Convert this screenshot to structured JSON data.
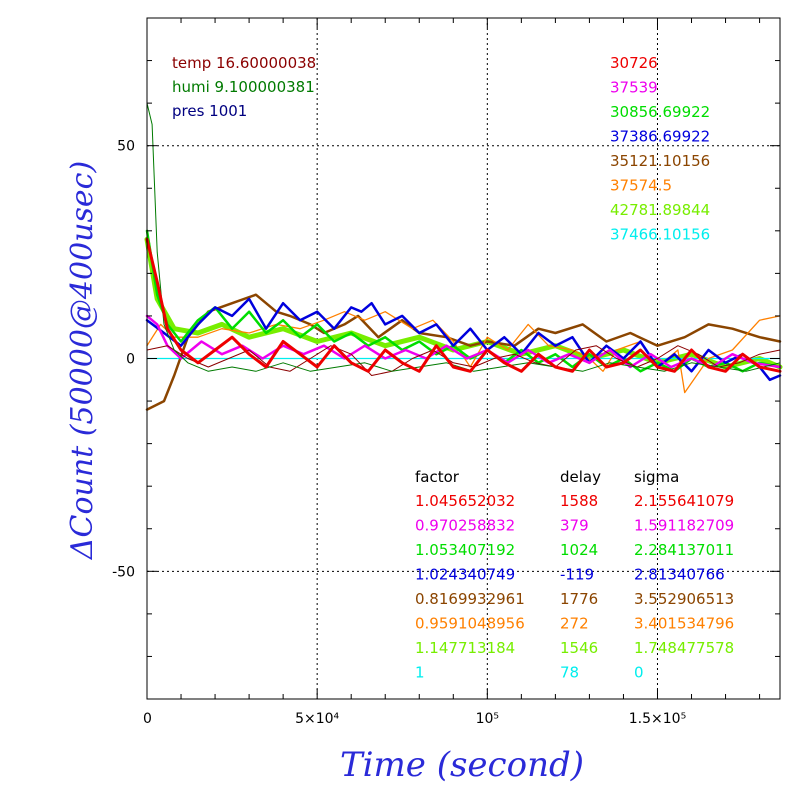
{
  "chart_data": {
    "type": "line",
    "xlabel": "Time (second)",
    "ylabel": "ΔCount (50000@400usec)",
    "xlim": [
      0,
      186000
    ],
    "ylim": [
      -80,
      80
    ],
    "x_ticks": [
      {
        "value": 0,
        "label": "0"
      },
      {
        "value": 50000,
        "label": "5×10⁴"
      },
      {
        "value": 100000,
        "label": "10⁵"
      },
      {
        "value": 150000,
        "label": "1.5×10⁵"
      }
    ],
    "y_ticks": [
      {
        "value": 50,
        "label": "50"
      },
      {
        "value": 0,
        "label": "0"
      },
      {
        "value": -50,
        "label": "-50"
      }
    ],
    "grid": true,
    "env": [
      {
        "text": "temp 16.60000038",
        "color": "#8b0000"
      },
      {
        "text": "humi 9.100000381",
        "color": "#007a00"
      },
      {
        "text": "pres 1001",
        "color": "#000080"
      }
    ],
    "right_labels": [
      {
        "text": "30726",
        "color": "#ee0000"
      },
      {
        "text": "37539",
        "color": "#ee00ee"
      },
      {
        "text": "30856.69922",
        "color": "#00dd00"
      },
      {
        "text": "37386.69922",
        "color": "#0000dd"
      },
      {
        "text": "35121.10156",
        "color": "#8b4500"
      },
      {
        "text": "37574.5",
        "color": "#ff8000"
      },
      {
        "text": "42781.89844",
        "color": "#77ee00"
      },
      {
        "text": "37466.10156",
        "color": "#00eeee"
      }
    ],
    "table_headers": [
      "factor",
      "delay",
      "sigma"
    ],
    "table_rows": [
      {
        "factor": "1.045652032",
        "delay": "1588",
        "sigma": "2.155641079",
        "color": "#ee0000"
      },
      {
        "factor": "0.970258832",
        "delay": "379",
        "sigma": "1.591182709",
        "color": "#ee00ee"
      },
      {
        "factor": "1.053407192",
        "delay": "1024",
        "sigma": "2.284137011",
        "color": "#00dd00"
      },
      {
        "factor": "1.024340749",
        "delay": "-119",
        "sigma": "2.81340766",
        "color": "#0000dd"
      },
      {
        "factor": "0.8169932961",
        "delay": "1776",
        "sigma": "3.552906513",
        "color": "#8b4500"
      },
      {
        "factor": "0.9591048956",
        "delay": "272",
        "sigma": "3.401534796",
        "color": "#ff8000"
      },
      {
        "factor": "1.147713184",
        "delay": "1546",
        "sigma": "1.748477578",
        "color": "#77ee00"
      },
      {
        "factor": "1",
        "delay": "78",
        "sigma": "0",
        "color": "#00eeee"
      }
    ],
    "series": [
      {
        "color": "#77ee00",
        "width": 5,
        "x": [
          0,
          3000,
          8000,
          15000,
          22000,
          30000,
          40000,
          50000,
          60000,
          70000,
          80000,
          90000,
          100000,
          110000,
          120000,
          130000,
          140000,
          150000,
          160000,
          170000,
          180000,
          186000
        ],
        "y": [
          28,
          14,
          7,
          6,
          8,
          5,
          7,
          4,
          6,
          3,
          5,
          2,
          4,
          1,
          3,
          0,
          2,
          -1,
          1,
          -2,
          0,
          -2
        ]
      },
      {
        "color": "#00eeee",
        "width": 1.2,
        "x": [
          0,
          30000,
          60000,
          90000,
          120000,
          150000,
          186000
        ],
        "y": [
          0,
          0,
          0,
          0,
          0,
          0,
          0
        ]
      },
      {
        "color": "#8b4500",
        "width": 2.5,
        "x": [
          0,
          5000,
          8000,
          12000,
          18000,
          25000,
          32000,
          38000,
          42000,
          48000,
          52000,
          58000,
          62000,
          68000,
          75000,
          80000,
          88000,
          95000,
          100000,
          108000,
          115000,
          120000,
          128000,
          135000,
          142000,
          150000,
          158000,
          165000,
          172000,
          180000,
          186000
        ],
        "y": [
          -12,
          -10,
          -4,
          5,
          11,
          13,
          15,
          11,
          10,
          8,
          6,
          8,
          10,
          5,
          9,
          6,
          5,
          3,
          4,
          3,
          7,
          6,
          8,
          4,
          6,
          3,
          5,
          8,
          7,
          5,
          4
        ]
      },
      {
        "color": "#ff8000",
        "width": 1.3,
        "x": [
          0,
          4000,
          8000,
          15000,
          22000,
          30000,
          38000,
          45000,
          52000,
          58000,
          64000,
          70000,
          78000,
          84000,
          90000,
          95000,
          100000,
          106000,
          112000,
          118000,
          125000,
          130000,
          134000,
          138000,
          145000,
          150000,
          156000,
          158000,
          165000,
          172000,
          180000,
          186000
        ],
        "y": [
          3,
          8,
          5,
          5,
          7,
          6,
          8,
          7,
          9,
          11,
          9,
          11,
          7,
          9,
          4,
          -2,
          5,
          2,
          8,
          3,
          2,
          0,
          -3,
          2,
          4,
          -2,
          2,
          -8,
          0,
          2,
          9,
          10
        ]
      },
      {
        "color": "#00dd00",
        "width": 2.5,
        "x": [
          0,
          3000,
          6000,
          10000,
          15000,
          20000,
          25000,
          30000,
          35000,
          40000,
          45000,
          50000,
          55000,
          60000,
          65000,
          70000,
          75000,
          80000,
          85000,
          90000,
          95000,
          100000,
          105000,
          110000,
          115000,
          120000,
          125000,
          130000,
          135000,
          140000,
          145000,
          150000,
          155000,
          160000,
          165000,
          170000,
          175000,
          180000,
          186000
        ],
        "y": [
          30,
          15,
          8,
          4,
          9,
          12,
          7,
          11,
          6,
          9,
          5,
          8,
          4,
          6,
          3,
          5,
          2,
          4,
          1,
          3,
          0,
          2,
          -1,
          2,
          -1,
          1,
          -2,
          1,
          -2,
          0,
          -3,
          -1,
          -3,
          0,
          -2,
          -1,
          -3,
          -1,
          -2
        ]
      },
      {
        "color": "#0000dd",
        "width": 2.5,
        "x": [
          0,
          5000,
          10000,
          15000,
          20000,
          25000,
          30000,
          35000,
          40000,
          45000,
          50000,
          55000,
          60000,
          63000,
          66000,
          70000,
          75000,
          80000,
          85000,
          90000,
          95000,
          100000,
          105000,
          110000,
          115000,
          120000,
          125000,
          130000,
          135000,
          140000,
          145000,
          150000,
          155000,
          160000,
          165000,
          170000,
          175000,
          180000,
          183000,
          186000
        ],
        "y": [
          9,
          6,
          3,
          8,
          12,
          10,
          14,
          7,
          13,
          9,
          11,
          7,
          12,
          11,
          13,
          8,
          10,
          6,
          8,
          3,
          7,
          2,
          5,
          1,
          6,
          3,
          5,
          -1,
          3,
          0,
          4,
          -2,
          1,
          -3,
          2,
          -1,
          1,
          -2,
          -5,
          -4
        ]
      },
      {
        "color": "#ee00ee",
        "width": 2.5,
        "x": [
          0,
          3000,
          6000,
          10000,
          16000,
          22000,
          28000,
          34000,
          40000,
          46000,
          52000,
          58000,
          64000,
          70000,
          76000,
          82000,
          88000,
          94000,
          100000,
          106000,
          112000,
          118000,
          124000,
          130000,
          136000,
          142000,
          148000,
          154000,
          160000,
          166000,
          172000,
          178000,
          186000
        ],
        "y": [
          10,
          8,
          3,
          0,
          4,
          1,
          3,
          0,
          3,
          1,
          3,
          0,
          3,
          0,
          2,
          0,
          3,
          0,
          2,
          -1,
          2,
          -1,
          1,
          -1,
          2,
          -2,
          1,
          -2,
          0,
          -2,
          1,
          -1,
          -2
        ]
      },
      {
        "color": "#8b0000",
        "width": 1,
        "x": [
          0,
          6000,
          12000,
          18000,
          24000,
          30000,
          36000,
          42000,
          48000,
          54000,
          60000,
          66000,
          72000,
          78000,
          84000,
          90000,
          96000,
          102000,
          108000,
          114000,
          120000,
          126000,
          132000,
          138000,
          144000,
          150000,
          156000,
          162000,
          168000,
          174000,
          180000,
          186000
        ],
        "y": [
          2,
          3,
          0,
          -2,
          0,
          2,
          -2,
          -3,
          0,
          3,
          1,
          -4,
          -3,
          0,
          2,
          -1,
          -2,
          0,
          1,
          -1,
          -2,
          2,
          3,
          0,
          -2,
          0,
          3,
          1,
          -2,
          -1,
          1,
          2
        ]
      },
      {
        "color": "#007a00",
        "width": 1,
        "x": [
          0,
          1500,
          3000,
          5000,
          8000,
          12000,
          18000,
          25000,
          32000,
          40000,
          48000,
          56000,
          64000,
          72000,
          80000,
          88000,
          96000,
          104000,
          112000,
          120000,
          128000,
          136000,
          144000,
          152000,
          160000,
          168000,
          176000,
          186000
        ],
        "y": [
          60,
          55,
          25,
          8,
          2,
          -1,
          -3,
          -2,
          -3,
          -1,
          -3,
          -2,
          -1,
          -3,
          -2,
          -1,
          -3,
          -2,
          -1,
          -2,
          -3,
          -1,
          -2,
          -3,
          -1,
          -2,
          -3,
          -1
        ]
      },
      {
        "color": "#ee0000",
        "width": 3,
        "x": [
          0,
          3000,
          6000,
          10000,
          15000,
          20000,
          25000,
          30000,
          35000,
          40000,
          45000,
          50000,
          55000,
          60000,
          65000,
          70000,
          75000,
          80000,
          85000,
          90000,
          95000,
          100000,
          105000,
          110000,
          115000,
          120000,
          125000,
          130000,
          135000,
          140000,
          145000,
          150000,
          155000,
          160000,
          165000,
          170000,
          175000,
          180000,
          186000
        ],
        "y": [
          28,
          18,
          7,
          2,
          -1,
          2,
          5,
          1,
          -2,
          4,
          1,
          -2,
          3,
          -1,
          -3,
          2,
          -1,
          -3,
          3,
          -2,
          -3,
          2,
          -1,
          -3,
          1,
          -2,
          -3,
          2,
          -2,
          -1,
          2,
          -2,
          -3,
          2,
          -2,
          -3,
          1,
          -2,
          -3
        ]
      }
    ]
  }
}
